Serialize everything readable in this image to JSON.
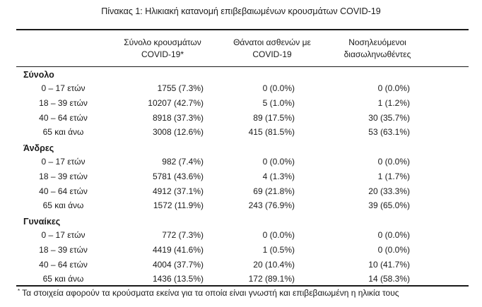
{
  "caption": "Πίνακας 1: Ηλικιακή κατανομή επιβεβαιωμένων κρουσμάτων COVID-19",
  "columns": [
    [
      "Σύνολο κρουσμάτων",
      "COVID-19*"
    ],
    [
      "Θάνατοι ασθενών με",
      "COVID-19"
    ],
    [
      "Νοσηλευόμενοι",
      "διασωληνωθέντες"
    ]
  ],
  "groups": [
    {
      "title": "Σύνολο",
      "rows": [
        [
          "0 – 17 ετών",
          "1755 (7.3%)",
          "0 (0.0%)",
          "0 (0.0%)"
        ],
        [
          "18 – 39 ετών",
          "10207 (42.7%)",
          "5 (1.0%)",
          "1 (1.2%)"
        ],
        [
          "40 – 64 ετών",
          "8918 (37.3%)",
          "89 (17.5%)",
          "30 (35.7%)"
        ],
        [
          "65 και άνω",
          "3008 (12.6%)",
          "415 (81.5%)",
          "53 (63.1%)"
        ]
      ]
    },
    {
      "title": "Άνδρες",
      "rows": [
        [
          "0 – 17 ετών",
          "982 (7.4%)",
          "0 (0.0%)",
          "0 (0.0%)"
        ],
        [
          "18 – 39 ετών",
          "5781 (43.6%)",
          "4 (1.3%)",
          "1 (1.7%)"
        ],
        [
          "40 – 64 ετών",
          "4912 (37.1%)",
          "69 (21.8%)",
          "20 (33.3%)"
        ],
        [
          "65 και άνω",
          "1572 (11.9%)",
          "243 (76.9%)",
          "39 (65.0%)"
        ]
      ]
    },
    {
      "title": "Γυναίκες",
      "rows": [
        [
          "0 – 17 ετών",
          "772 (7.3%)",
          "0 (0.0%)",
          "0 (0.0%)"
        ],
        [
          "18 – 39 ετών",
          "4419 (41.6%)",
          "1 (0.5%)",
          "0 (0.0%)"
        ],
        [
          "40 – 64 ετών",
          "4004 (37.7%)",
          "20 (10.4%)",
          "10 (41.7%)"
        ],
        [
          "65 και άνω",
          "1436 (13.5%)",
          "172 (89.1%)",
          "14 (58.3%)"
        ]
      ]
    }
  ],
  "footnote": {
    "mark": "*",
    "text": "Τα στοιχεία αφορούν τα κρούσματα εκείνα για τα οποία είναι γνωστή και επιβεβαιωμένη η ηλικία τους"
  }
}
